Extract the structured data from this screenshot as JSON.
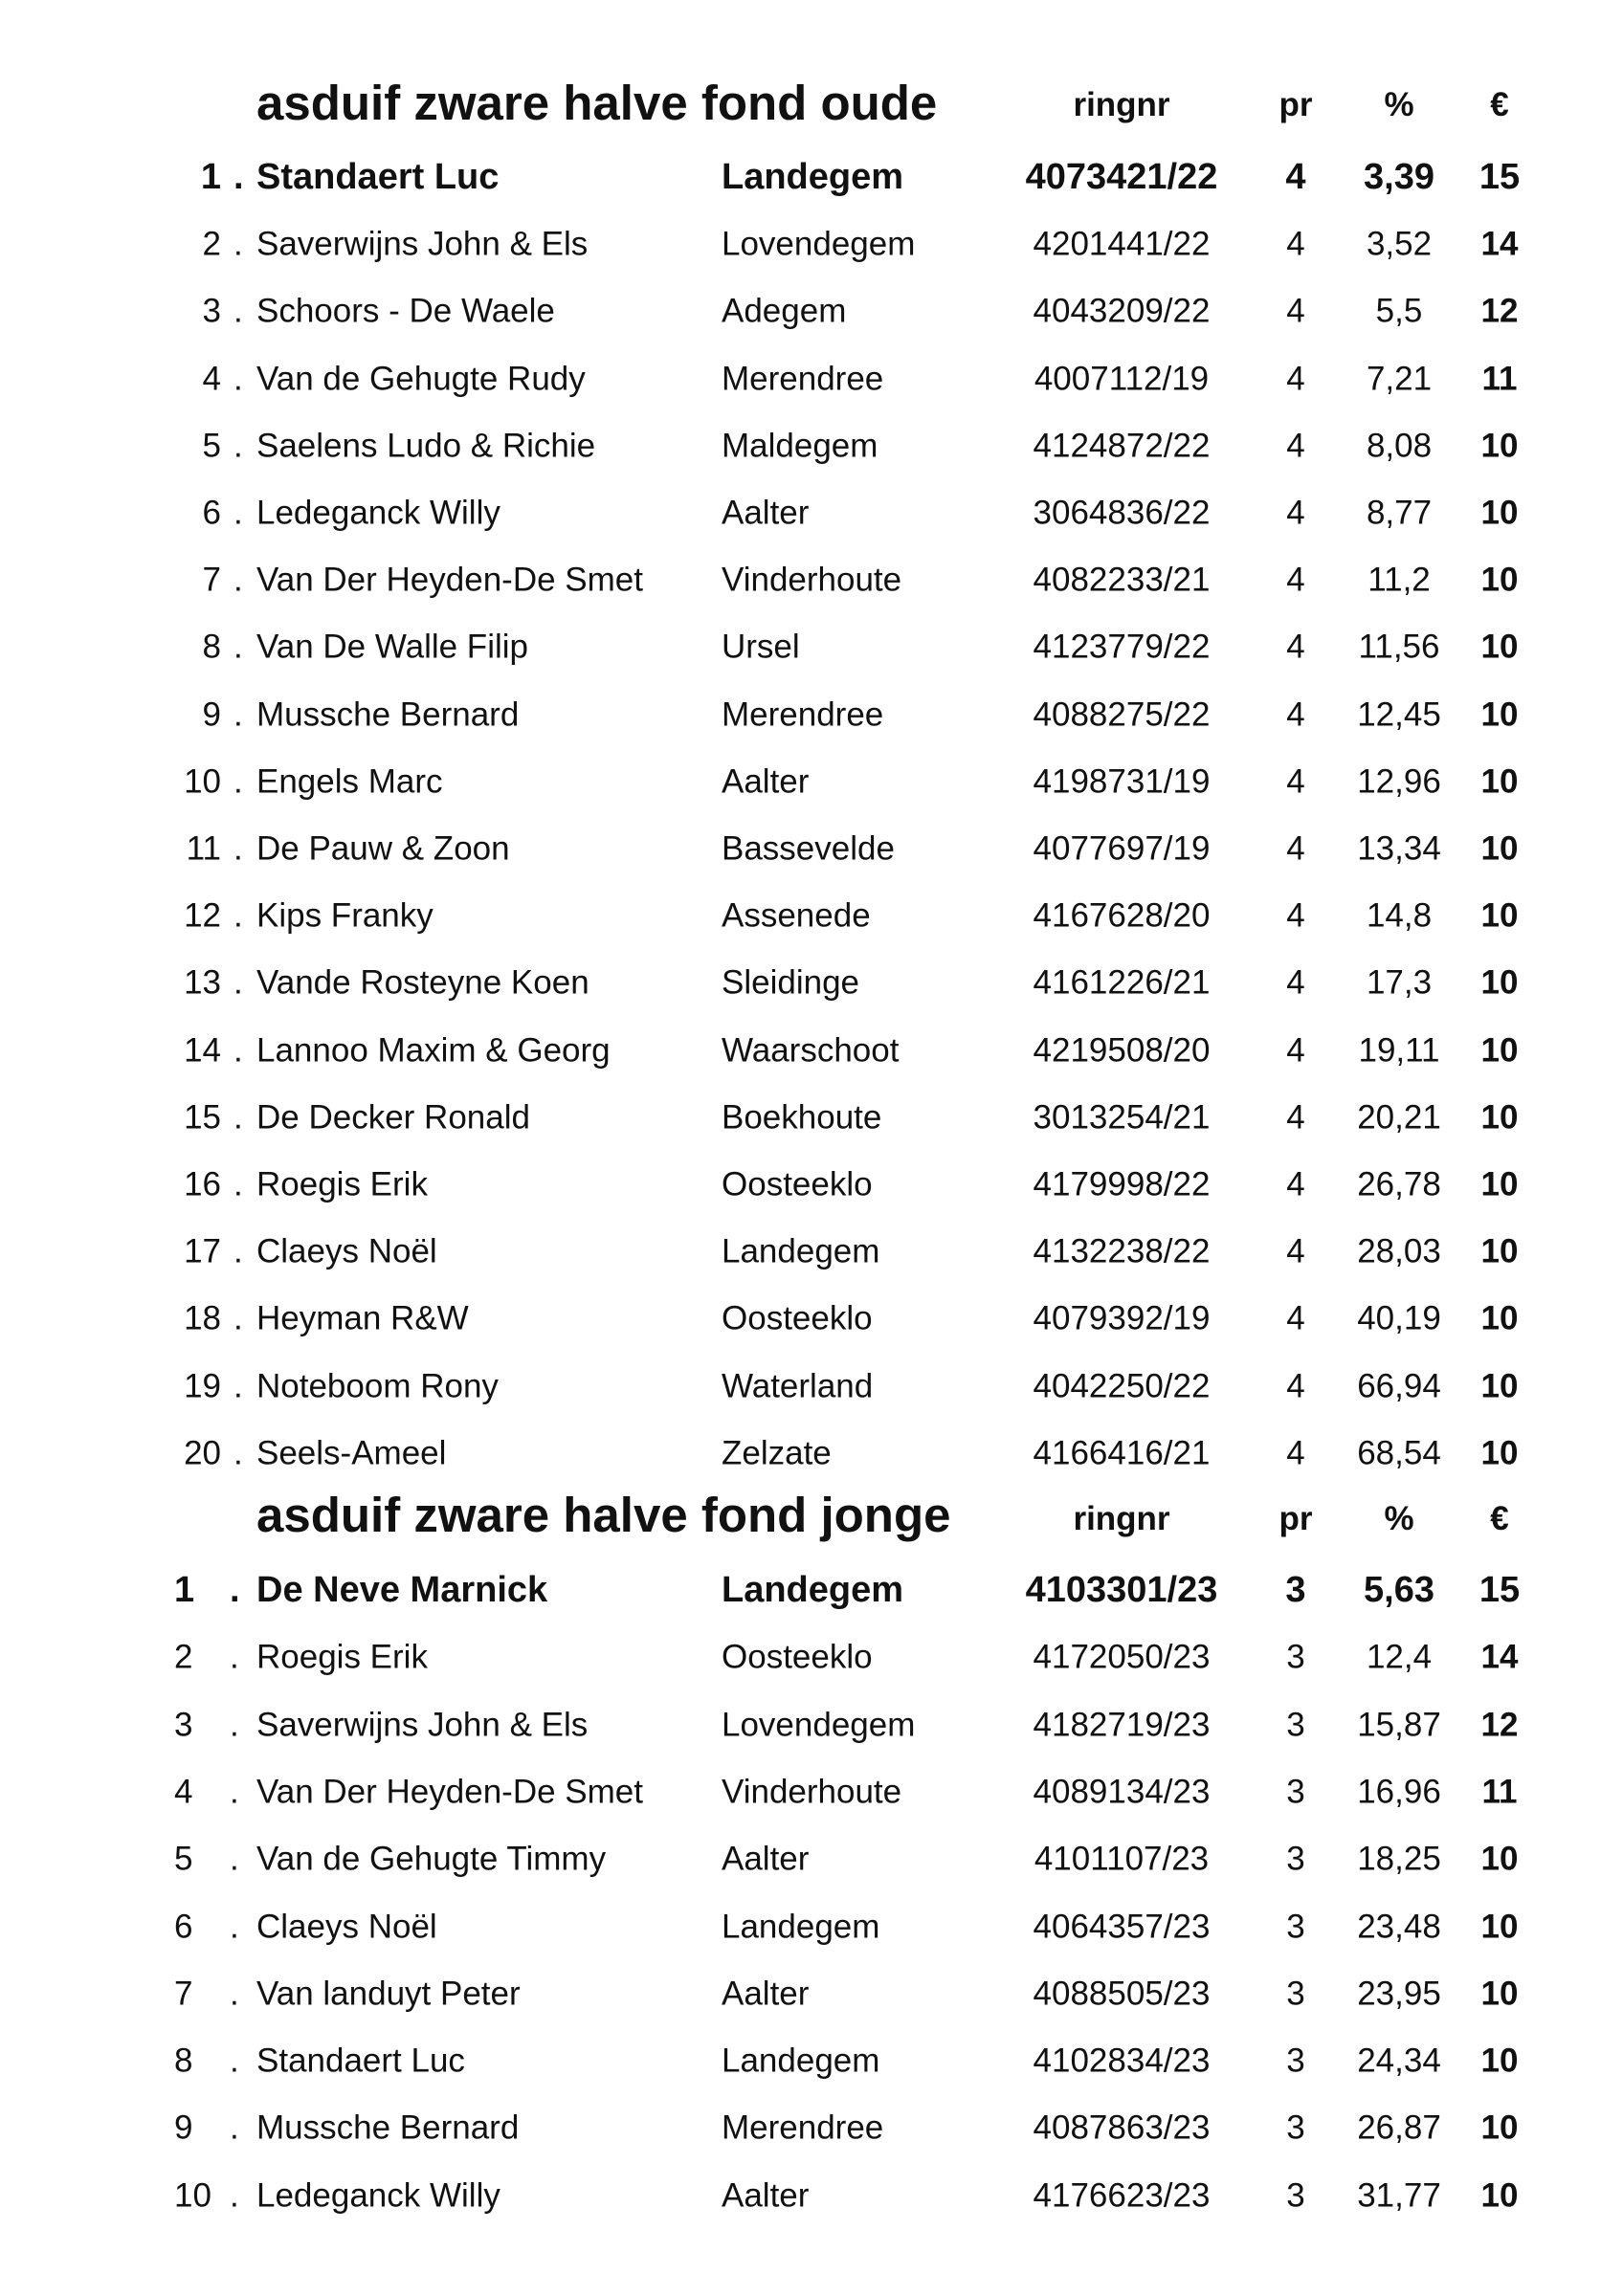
{
  "sections": [
    {
      "title": "asduif zware halve fond oude",
      "headers": {
        "ringnr": "ringnr",
        "pr": "pr",
        "pct": "%",
        "eur": "€"
      },
      "rows": [
        {
          "rank": "1",
          "name": "Standaert Luc",
          "city": "Landegem",
          "ring": "4073421/22",
          "pr": "4",
          "pct": "3,39",
          "eur": "15"
        },
        {
          "rank": "2",
          "name": "Saverwijns John & Els",
          "city": "Lovendegem",
          "ring": "4201441/22",
          "pr": "4",
          "pct": "3,52",
          "eur": "14"
        },
        {
          "rank": "3",
          "name": "Schoors - De Waele",
          "city": "Adegem",
          "ring": "4043209/22",
          "pr": "4",
          "pct": "5,5",
          "eur": "12"
        },
        {
          "rank": "4",
          "name": "Van de Gehugte Rudy",
          "city": "Merendree",
          "ring": "4007112/19",
          "pr": "4",
          "pct": "7,21",
          "eur": "11"
        },
        {
          "rank": "5",
          "name": "Saelens Ludo & Richie",
          "city": "Maldegem",
          "ring": "4124872/22",
          "pr": "4",
          "pct": "8,08",
          "eur": "10"
        },
        {
          "rank": "6",
          "name": "Ledeganck Willy",
          "city": "Aalter",
          "ring": "3064836/22",
          "pr": "4",
          "pct": "8,77",
          "eur": "10"
        },
        {
          "rank": "7",
          "name": "Van Der Heyden-De Smet",
          "city": "Vinderhoute",
          "ring": "4082233/21",
          "pr": "4",
          "pct": "11,2",
          "eur": "10"
        },
        {
          "rank": "8",
          "name": "Van De Walle Filip",
          "city": "Ursel",
          "ring": "4123779/22",
          "pr": "4",
          "pct": "11,56",
          "eur": "10"
        },
        {
          "rank": "9",
          "name": "Mussche Bernard",
          "city": "Merendree",
          "ring": "4088275/22",
          "pr": "4",
          "pct": "12,45",
          "eur": "10"
        },
        {
          "rank": "10",
          "name": "Engels Marc",
          "city": "Aalter",
          "ring": "4198731/19",
          "pr": "4",
          "pct": "12,96",
          "eur": "10"
        },
        {
          "rank": "11",
          "name": "De Pauw & Zoon",
          "city": "Bassevelde",
          "ring": "4077697/19",
          "pr": "4",
          "pct": "13,34",
          "eur": "10"
        },
        {
          "rank": "12",
          "name": "Kips Franky",
          "city": "Assenede",
          "ring": "4167628/20",
          "pr": "4",
          "pct": "14,8",
          "eur": "10"
        },
        {
          "rank": "13",
          "name": "Vande Rosteyne Koen",
          "city": "Sleidinge",
          "ring": "4161226/21",
          "pr": "4",
          "pct": "17,3",
          "eur": "10"
        },
        {
          "rank": "14",
          "name": "Lannoo Maxim & Georg",
          "city": "Waarschoot",
          "ring": "4219508/20",
          "pr": "4",
          "pct": "19,11",
          "eur": "10"
        },
        {
          "rank": "15",
          "name": "De Decker Ronald",
          "city": "Boekhoute",
          "ring": "3013254/21",
          "pr": "4",
          "pct": "20,21",
          "eur": "10"
        },
        {
          "rank": "16",
          "name": "Roegis Erik",
          "city": "Oosteeklo",
          "ring": "4179998/22",
          "pr": "4",
          "pct": "26,78",
          "eur": "10"
        },
        {
          "rank": "17",
          "name": "Claeys Noël",
          "city": "Landegem",
          "ring": "4132238/22",
          "pr": "4",
          "pct": "28,03",
          "eur": "10"
        },
        {
          "rank": "18",
          "name": "Heyman R&W",
          "city": "Oosteeklo",
          "ring": "4079392/19",
          "pr": "4",
          "pct": "40,19",
          "eur": "10"
        },
        {
          "rank": "19",
          "name": "Noteboom Rony",
          "city": "Waterland",
          "ring": "4042250/22",
          "pr": "4",
          "pct": "66,94",
          "eur": "10"
        },
        {
          "rank": "20",
          "name": "Seels-Ameel",
          "city": "Zelzate",
          "ring": "4166416/21",
          "pr": "4",
          "pct": "68,54",
          "eur": "10"
        }
      ]
    },
    {
      "title": "asduif zware halve fond jonge",
      "headers": {
        "ringnr": "ringnr",
        "pr": "pr",
        "pct": "%",
        "eur": "€"
      },
      "rows": [
        {
          "rank": "1",
          "name": "De Neve Marnick",
          "city": "Landegem",
          "ring": "4103301/23",
          "pr": "3",
          "pct": "5,63",
          "eur": "15"
        },
        {
          "rank": "2",
          "name": "Roegis Erik",
          "city": "Oosteeklo",
          "ring": "4172050/23",
          "pr": "3",
          "pct": "12,4",
          "eur": "14"
        },
        {
          "rank": "3",
          "name": "Saverwijns John & Els",
          "city": "Lovendegem",
          "ring": "4182719/23",
          "pr": "3",
          "pct": "15,87",
          "eur": "12"
        },
        {
          "rank": "4",
          "name": "Van Der Heyden-De Smet",
          "city": "Vinderhoute",
          "ring": "4089134/23",
          "pr": "3",
          "pct": "16,96",
          "eur": "11"
        },
        {
          "rank": "5",
          "name": "Van de Gehugte Timmy",
          "city": "Aalter",
          "ring": "4101107/23",
          "pr": "3",
          "pct": "18,25",
          "eur": "10"
        },
        {
          "rank": "6",
          "name": "Claeys Noël",
          "city": "Landegem",
          "ring": "4064357/23",
          "pr": "3",
          "pct": "23,48",
          "eur": "10"
        },
        {
          "rank": "7",
          "name": "Van landuyt Peter",
          "city": "Aalter",
          "ring": "4088505/23",
          "pr": "3",
          "pct": "23,95",
          "eur": "10"
        },
        {
          "rank": "8",
          "name": "Standaert Luc",
          "city": "Landegem",
          "ring": "4102834/23",
          "pr": "3",
          "pct": "24,34",
          "eur": "10"
        },
        {
          "rank": "9",
          "name": "Mussche Bernard",
          "city": "Merendree",
          "ring": "4087863/23",
          "pr": "3",
          "pct": "26,87",
          "eur": "10"
        },
        {
          "rank": "10",
          "name": "Ledeganck Willy",
          "city": "Aalter",
          "ring": "4176623/23",
          "pr": "3",
          "pct": "31,77",
          "eur": "10"
        }
      ]
    }
  ]
}
